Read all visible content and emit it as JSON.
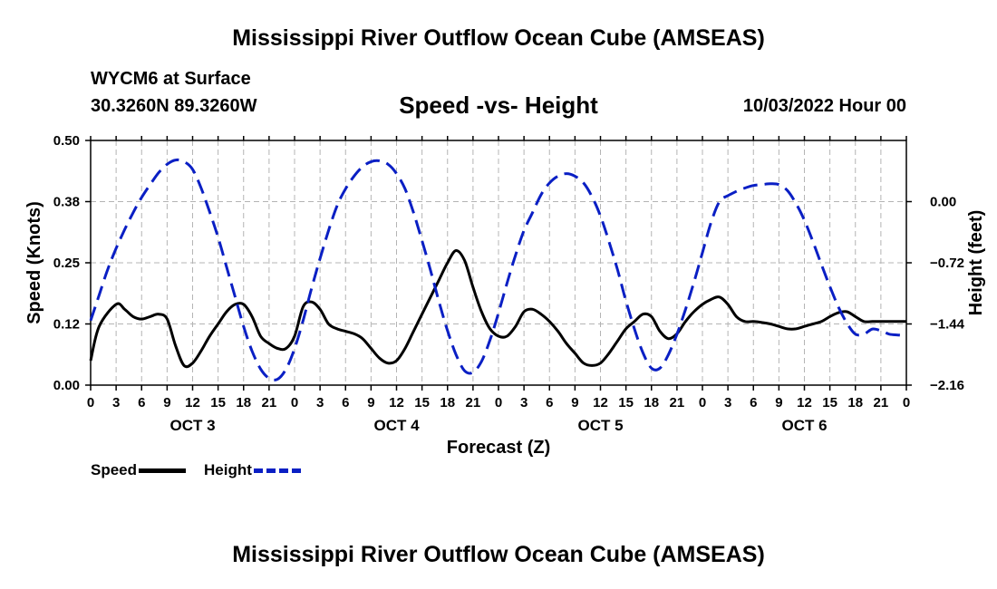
{
  "title": "Mississippi River Outflow Ocean Cube (AMSEAS)",
  "title_repeat": "Mississippi River Outflow Ocean Cube (AMSEAS)",
  "station": "WYCM6 at Surface",
  "coordinates": "30.3260N  89.3260W",
  "subtitle": "Speed -vs- Height",
  "datetime": "10/03/2022 Hour 00",
  "legend": {
    "speed_label": "Speed",
    "height_label": "Height"
  },
  "colors": {
    "speed": "#000000",
    "height": "#0a1fc4",
    "grid": "#b4b4b4"
  },
  "chart_data": {
    "type": "line",
    "title": "Speed -vs- Height",
    "xlabel": "Forecast (Z)",
    "ylabel": "Speed (Knots)",
    "y2label": "Height (feet)",
    "x_range_hours": [
      0,
      96
    ],
    "ylim": [
      0,
      0.5
    ],
    "y2lim": [
      -2.16,
      0.72
    ],
    "y_ticks": [
      "0.00",
      "0.12",
      "0.25",
      "0.38",
      "0.50"
    ],
    "y_tick_values": [
      0,
      0.125,
      0.25,
      0.375,
      0.5
    ],
    "y2_ticks": [
      "−2.16",
      "−1.44",
      "−0.72",
      "0.00"
    ],
    "y2_tick_values": [
      -2.16,
      -1.44,
      -0.72,
      0
    ],
    "x_tick_labels": [
      "0",
      "3",
      "6",
      "9",
      "12",
      "15",
      "18",
      "21",
      "0",
      "3",
      "6",
      "9",
      "12",
      "15",
      "18",
      "21",
      "0",
      "3",
      "6",
      "9",
      "12",
      "15",
      "18",
      "21",
      "0",
      "3",
      "6",
      "9",
      "12",
      "15",
      "18",
      "21",
      "0"
    ],
    "day_labels": [
      {
        "label": "OCT 3",
        "hour": 12
      },
      {
        "label": "OCT 4",
        "hour": 36
      },
      {
        "label": "OCT 5",
        "hour": 60
      },
      {
        "label": "OCT 6",
        "hour": 84
      }
    ],
    "grid": true,
    "legend_position": "bottom-left",
    "series": [
      {
        "name": "Speed",
        "axis": "left",
        "style": "solid",
        "x": [
          0,
          1,
          3,
          4,
          5,
          6,
          7,
          8,
          9,
          10,
          11,
          12,
          13,
          14,
          15,
          16,
          17,
          18,
          19,
          20,
          21,
          22,
          23,
          24,
          25,
          26,
          27,
          28,
          29,
          30,
          31,
          32,
          33,
          34,
          35,
          36,
          37,
          38,
          39,
          40,
          41,
          42,
          43,
          44,
          45,
          46,
          47,
          48,
          49,
          50,
          51,
          52,
          53,
          54,
          55,
          56,
          57,
          58,
          59,
          60,
          61,
          62,
          63,
          64,
          65,
          66,
          67,
          68,
          69,
          70,
          71,
          72,
          73,
          74,
          75,
          76,
          77,
          78,
          79,
          80,
          81,
          82,
          83,
          84,
          85,
          86,
          87,
          88,
          89,
          90,
          91,
          92,
          93,
          94,
          95,
          96
        ],
        "values": [
          0.05,
          0.12,
          0.165,
          0.155,
          0.14,
          0.135,
          0.14,
          0.145,
          0.135,
          0.08,
          0.04,
          0.045,
          0.07,
          0.1,
          0.125,
          0.15,
          0.165,
          0.165,
          0.14,
          0.1,
          0.085,
          0.075,
          0.075,
          0.1,
          0.16,
          0.17,
          0.155,
          0.125,
          0.115,
          0.11,
          0.105,
          0.095,
          0.075,
          0.055,
          0.045,
          0.05,
          0.075,
          0.11,
          0.145,
          0.18,
          0.215,
          0.25,
          0.275,
          0.255,
          0.2,
          0.15,
          0.115,
          0.1,
          0.1,
          0.12,
          0.15,
          0.155,
          0.145,
          0.13,
          0.11,
          0.085,
          0.065,
          0.045,
          0.04,
          0.045,
          0.065,
          0.09,
          0.115,
          0.13,
          0.145,
          0.14,
          0.11,
          0.095,
          0.105,
          0.13,
          0.15,
          0.165,
          0.175,
          0.18,
          0.165,
          0.14,
          0.13,
          0.13,
          0.128,
          0.125,
          0.12,
          0.115,
          0.115,
          0.12,
          0.125,
          0.13,
          0.14,
          0.148,
          0.15,
          0.14,
          0.13,
          0.13,
          0.13,
          0.13,
          0.13,
          0.13
        ]
      },
      {
        "name": "Height",
        "axis": "right",
        "style": "dashed",
        "x": [
          0,
          1,
          2,
          3,
          4,
          5,
          6,
          7,
          8,
          9,
          10,
          11,
          12,
          13,
          14,
          15,
          16,
          17,
          18,
          19,
          20,
          21,
          22,
          23,
          24,
          25,
          26,
          27,
          28,
          29,
          30,
          31,
          32,
          33,
          34,
          35,
          36,
          37,
          38,
          39,
          40,
          41,
          42,
          43,
          44,
          45,
          46,
          47,
          48,
          49,
          50,
          51,
          52,
          53,
          54,
          55,
          56,
          57,
          58,
          59,
          60,
          61,
          62,
          63,
          64,
          65,
          66,
          67,
          68,
          69,
          70,
          71,
          72,
          73,
          74,
          75,
          76,
          77,
          78,
          79,
          80,
          81,
          82,
          83,
          84,
          85,
          86,
          87,
          88,
          89,
          90,
          91,
          92,
          93,
          94,
          95,
          96
        ],
        "values": [
          -1.4,
          -1.1,
          -0.8,
          -0.55,
          -0.33,
          -0.13,
          0.05,
          0.2,
          0.34,
          0.44,
          0.49,
          0.47,
          0.38,
          0.16,
          -0.12,
          -0.42,
          -0.77,
          -1.12,
          -1.47,
          -1.76,
          -1.97,
          -2.08,
          -2.09,
          -1.97,
          -1.73,
          -1.4,
          -1.02,
          -0.67,
          -0.34,
          -0.05,
          0.15,
          0.3,
          0.41,
          0.47,
          0.48,
          0.44,
          0.33,
          0.15,
          -0.13,
          -0.46,
          -0.81,
          -1.18,
          -1.52,
          -1.8,
          -1.99,
          -2.01,
          -1.88,
          -1.63,
          -1.31,
          -0.96,
          -0.63,
          -0.34,
          -0.13,
          0.08,
          0.22,
          0.3,
          0.33,
          0.3,
          0.22,
          0.06,
          -0.17,
          -0.47,
          -0.8,
          -1.17,
          -1.5,
          -1.78,
          -1.96,
          -1.96,
          -1.8,
          -1.56,
          -1.27,
          -0.95,
          -0.6,
          -0.25,
          0.0,
          0.07,
          0.12,
          0.16,
          0.19,
          0.2,
          0.21,
          0.2,
          0.13,
          -0.02,
          -0.22,
          -0.47,
          -0.74,
          -1.0,
          -1.24,
          -1.43,
          -1.56,
          -1.56,
          -1.5,
          -1.52,
          -1.56,
          -1.57,
          -1.58
        ]
      }
    ]
  }
}
